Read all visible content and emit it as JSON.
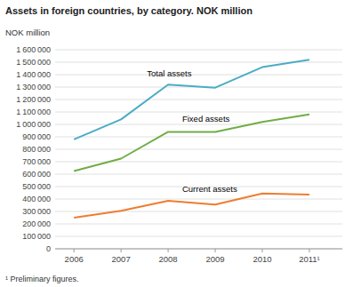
{
  "chart_data": {
    "type": "line",
    "title": "Assets in foreign countries, by category. NOK million",
    "y_label": "NOK million",
    "footnote": "¹ Preliminary figures.",
    "x": [
      2006,
      2007,
      2008,
      2009,
      2010,
      2011
    ],
    "xlim": [
      2005.6,
      2011.7
    ],
    "xticks": [
      2006,
      2007,
      2008,
      2009,
      2010,
      {
        "value": 2011,
        "label": "2011¹"
      }
    ],
    "series": [
      {
        "color": "#4bacc6",
        "values": [
          880000,
          1040000,
          1320000,
          1295000,
          1460000,
          1520000
        ]
      },
      {
        "color": "#70ad47",
        "values": [
          625000,
          725000,
          940000,
          940000,
          1020000,
          1080000
        ]
      },
      {
        "color": "#ed7d31",
        "values": [
          250000,
          305000,
          385000,
          355000,
          445000,
          435000
        ]
      }
    ],
    "annotations": [
      {
        "text": "Total assets",
        "x": 2007.55,
        "y": 1370000
      },
      {
        "text": "Fixed assets",
        "x": 2008.3,
        "y": 1010000
      },
      {
        "text": "Current assets",
        "x": 2008.3,
        "y": 440000
      }
    ],
    "ylim": [
      0,
      1600000
    ],
    "yticks": [
      0,
      {
        "value": 100000,
        "label": "100 000"
      },
      {
        "value": 200000,
        "label": "200 000"
      },
      {
        "value": 300000,
        "label": "300 000"
      },
      {
        "value": 400000,
        "label": "400 000"
      },
      {
        "value": 500000,
        "label": "500 000"
      },
      {
        "value": 600000,
        "label": "600 000"
      },
      {
        "value": 700000,
        "label": "700 000"
      },
      {
        "value": 800000,
        "label": "800 000"
      },
      {
        "value": 900000,
        "label": "900 000"
      },
      {
        "value": 1000000,
        "label": "1 000 000"
      },
      {
        "value": 1100000,
        "label": "1 100 000"
      },
      {
        "value": 1200000,
        "label": "1 200 000"
      },
      {
        "value": 1300000,
        "label": "1 300 000"
      },
      {
        "value": 1400000,
        "label": "1 400 000"
      },
      {
        "value": 1500000,
        "label": "1 500 000"
      },
      {
        "value": 1600000,
        "label": "1 600 000"
      }
    ],
    "grid": true
  }
}
